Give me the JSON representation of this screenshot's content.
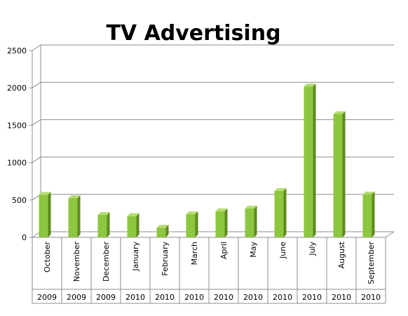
{
  "chart_data": {
    "type": "bar",
    "title": "TV Advertising",
    "xlabel": "",
    "ylabel": "",
    "ylim": [
      0,
      2500
    ],
    "yticks": [
      0,
      500,
      1000,
      1500,
      2000,
      2500
    ],
    "grid": true,
    "legend": "none",
    "categories": [
      {
        "month": "October",
        "year": "2009"
      },
      {
        "month": "November",
        "year": "2009"
      },
      {
        "month": "December",
        "year": "2009"
      },
      {
        "month": "January",
        "year": "2010"
      },
      {
        "month": "February",
        "year": "2010"
      },
      {
        "month": "March",
        "year": "2010"
      },
      {
        "month": "April",
        "year": "2010"
      },
      {
        "month": "May",
        "year": "2010"
      },
      {
        "month": "June",
        "year": "2010"
      },
      {
        "month": "July",
        "year": "2010"
      },
      {
        "month": "August",
        "year": "2010"
      },
      {
        "month": "September",
        "year": "2010"
      }
    ],
    "values": [
      570,
      525,
      300,
      285,
      130,
      310,
      350,
      385,
      620,
      2020,
      1650,
      575
    ],
    "colors": {
      "bar_front": "#8dc63f",
      "bar_side": "#5e8a1e",
      "bar_top": "#b5dd72",
      "grid": "#8c8c8c"
    }
  }
}
